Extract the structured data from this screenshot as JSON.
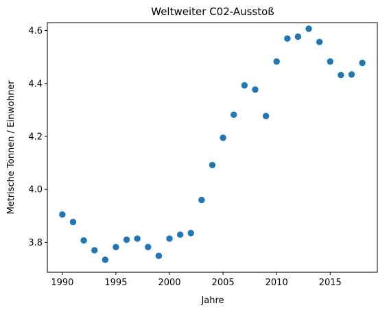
{
  "chart_data": {
    "type": "scatter",
    "title": "Weltweiter C02-Ausstoß",
    "xlabel": "Jahre",
    "ylabel": "Metrische Tonnen / Einwohner",
    "xlim": [
      1988.6,
      2019.4
    ],
    "ylim": [
      3.687,
      4.63
    ],
    "xticks": [
      1990,
      1995,
      2000,
      2005,
      2010,
      2015
    ],
    "yticks": [
      3.8,
      4.0,
      4.2,
      4.4,
      4.6
    ],
    "ytick_labels": [
      "3.8",
      "4.0",
      "4.2",
      "4.4",
      "4.6"
    ],
    "grid": false,
    "marker_color": "#1f77b4",
    "series": [
      {
        "x": [
          1990,
          1991,
          1992,
          1993,
          1994,
          1995,
          1996,
          1997,
          1998,
          1999,
          2000,
          2001,
          2002,
          2003,
          2004,
          2005,
          2006,
          2007,
          2008,
          2009,
          2010,
          2011,
          2012,
          2013,
          2014,
          2015,
          2016,
          2017,
          2018
        ],
        "y": [
          3.905,
          3.877,
          3.807,
          3.77,
          3.734,
          3.782,
          3.81,
          3.814,
          3.782,
          3.749,
          3.814,
          3.829,
          3.835,
          3.96,
          4.092,
          4.195,
          4.282,
          4.393,
          4.377,
          4.277,
          4.483,
          4.57,
          4.577,
          4.607,
          4.557,
          4.483,
          4.432,
          4.434,
          4.478
        ]
      }
    ]
  }
}
